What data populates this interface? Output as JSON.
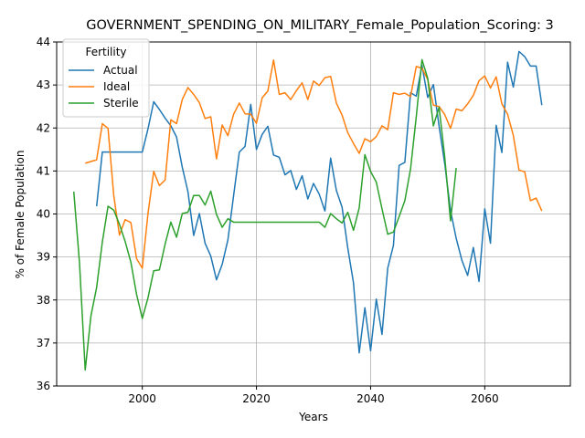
{
  "chart_data": {
    "type": "line",
    "title": "GOVERNMENT_SPENDING_ON_MILITARY_Female_Population_Scoring: 3",
    "xlabel": "Years",
    "ylabel": "% of Female Population",
    "xlim": [
      1985,
      2075
    ],
    "ylim": [
      36,
      44
    ],
    "xticks": [
      2000,
      2020,
      2040,
      2060
    ],
    "yticks": [
      36,
      37,
      38,
      39,
      40,
      41,
      42,
      43,
      44
    ],
    "grid": true,
    "legend": {
      "title": "Fertility",
      "placement": "top-left"
    },
    "series": [
      {
        "name": "Actual",
        "color": "#1f77b4",
        "points": [
          [
            1992,
            40.18
          ],
          [
            1993,
            41.44
          ],
          [
            1994,
            41.44
          ],
          [
            1995,
            41.44
          ],
          [
            1996,
            41.44
          ],
          [
            1997,
            41.44
          ],
          [
            1998,
            41.44
          ],
          [
            1999,
            41.44
          ],
          [
            2000,
            41.44
          ],
          [
            2001,
            41.98
          ],
          [
            2002,
            42.61
          ],
          [
            2003,
            42.43
          ],
          [
            2004,
            42.23
          ],
          [
            2005,
            42.05
          ],
          [
            2006,
            41.79
          ],
          [
            2007,
            41.09
          ],
          [
            2008,
            40.52
          ],
          [
            2009,
            39.5
          ],
          [
            2010,
            40.01
          ],
          [
            2011,
            39.32
          ],
          [
            2012,
            39.02
          ],
          [
            2013,
            38.47
          ],
          [
            2014,
            38.83
          ],
          [
            2015,
            39.4
          ],
          [
            2016,
            40.43
          ],
          [
            2017,
            41.44
          ],
          [
            2018,
            41.57
          ],
          [
            2019,
            42.55
          ],
          [
            2020,
            41.5
          ],
          [
            2021,
            41.85
          ],
          [
            2022,
            42.04
          ],
          [
            2023,
            41.37
          ],
          [
            2024,
            41.32
          ],
          [
            2025,
            40.91
          ],
          [
            2026,
            41.01
          ],
          [
            2027,
            40.57
          ],
          [
            2028,
            40.89
          ],
          [
            2029,
            40.35
          ],
          [
            2030,
            40.71
          ],
          [
            2031,
            40.46
          ],
          [
            2032,
            40.07
          ],
          [
            2033,
            41.3
          ],
          [
            2034,
            40.55
          ],
          [
            2035,
            40.16
          ],
          [
            2036,
            39.21
          ],
          [
            2037,
            38.4
          ],
          [
            2038,
            36.77
          ],
          [
            2039,
            37.82
          ],
          [
            2040,
            36.82
          ],
          [
            2041,
            38.02
          ],
          [
            2042,
            37.2
          ],
          [
            2043,
            38.74
          ],
          [
            2044,
            39.27
          ],
          [
            2045,
            41.13
          ],
          [
            2046,
            41.2
          ],
          [
            2047,
            42.82
          ],
          [
            2048,
            42.74
          ],
          [
            2049,
            43.46
          ],
          [
            2050,
            42.71
          ],
          [
            2051,
            43.01
          ],
          [
            2052,
            42.04
          ],
          [
            2053,
            41.16
          ],
          [
            2054,
            40.08
          ],
          [
            2055,
            39.43
          ],
          [
            2056,
            38.92
          ],
          [
            2057,
            38.57
          ],
          [
            2058,
            39.22
          ],
          [
            2059,
            38.43
          ],
          [
            2060,
            40.12
          ],
          [
            2061,
            39.32
          ],
          [
            2062,
            42.06
          ],
          [
            2063,
            41.43
          ],
          [
            2064,
            43.53
          ],
          [
            2065,
            42.95
          ],
          [
            2066,
            43.78
          ],
          [
            2067,
            43.66
          ],
          [
            2068,
            43.44
          ],
          [
            2069,
            43.44
          ],
          [
            2070,
            42.53
          ]
        ]
      },
      {
        "name": "Ideal",
        "color": "#ff7f0e",
        "points": [
          [
            1990,
            41.18
          ],
          [
            1991,
            41.22
          ],
          [
            1992,
            41.26
          ],
          [
            1993,
            42.1
          ],
          [
            1994,
            41.99
          ],
          [
            1995,
            40.43
          ],
          [
            1996,
            39.51
          ],
          [
            1997,
            39.87
          ],
          [
            1998,
            39.8
          ],
          [
            1999,
            38.96
          ],
          [
            2000,
            38.74
          ],
          [
            2001,
            40.01
          ],
          [
            2002,
            40.99
          ],
          [
            2003,
            40.66
          ],
          [
            2004,
            40.79
          ],
          [
            2005,
            42.19
          ],
          [
            2006,
            42.1
          ],
          [
            2007,
            42.66
          ],
          [
            2008,
            42.94
          ],
          [
            2009,
            42.78
          ],
          [
            2010,
            42.59
          ],
          [
            2011,
            42.22
          ],
          [
            2012,
            42.26
          ],
          [
            2013,
            41.28
          ],
          [
            2014,
            42.07
          ],
          [
            2015,
            41.82
          ],
          [
            2016,
            42.32
          ],
          [
            2017,
            42.58
          ],
          [
            2018,
            42.33
          ],
          [
            2019,
            42.32
          ],
          [
            2020,
            42.11
          ],
          [
            2021,
            42.7
          ],
          [
            2022,
            42.86
          ],
          [
            2023,
            43.58
          ],
          [
            2024,
            42.78
          ],
          [
            2025,
            42.82
          ],
          [
            2026,
            42.66
          ],
          [
            2027,
            42.87
          ],
          [
            2028,
            43.05
          ],
          [
            2029,
            42.66
          ],
          [
            2030,
            43.09
          ],
          [
            2031,
            42.99
          ],
          [
            2032,
            43.17
          ],
          [
            2033,
            43.2
          ],
          [
            2034,
            42.58
          ],
          [
            2035,
            42.3
          ],
          [
            2036,
            41.89
          ],
          [
            2037,
            41.64
          ],
          [
            2038,
            41.41
          ],
          [
            2039,
            41.75
          ],
          [
            2040,
            41.68
          ],
          [
            2041,
            41.8
          ],
          [
            2042,
            42.05
          ],
          [
            2043,
            41.96
          ],
          [
            2044,
            42.82
          ],
          [
            2045,
            42.78
          ],
          [
            2046,
            42.81
          ],
          [
            2047,
            42.73
          ],
          [
            2048,
            43.43
          ],
          [
            2049,
            43.39
          ],
          [
            2050,
            43.13
          ],
          [
            2051,
            42.53
          ],
          [
            2052,
            42.5
          ],
          [
            2053,
            42.31
          ],
          [
            2054,
            41.99
          ],
          [
            2055,
            42.44
          ],
          [
            2056,
            42.4
          ],
          [
            2057,
            42.56
          ],
          [
            2058,
            42.76
          ],
          [
            2059,
            43.1
          ],
          [
            2060,
            43.21
          ],
          [
            2061,
            42.93
          ],
          [
            2062,
            43.19
          ],
          [
            2063,
            42.56
          ],
          [
            2064,
            42.32
          ],
          [
            2065,
            41.83
          ],
          [
            2066,
            41.02
          ],
          [
            2067,
            40.98
          ],
          [
            2068,
            40.31
          ],
          [
            2069,
            40.37
          ],
          [
            2070,
            40.07
          ]
        ]
      },
      {
        "name": "Sterile",
        "color": "#2ca02c",
        "points": [
          [
            1988,
            40.52
          ],
          [
            1989,
            38.86
          ],
          [
            1990,
            36.37
          ],
          [
            1991,
            37.63
          ],
          [
            1992,
            38.29
          ],
          [
            1993,
            39.35
          ],
          [
            1994,
            40.18
          ],
          [
            1995,
            40.09
          ],
          [
            1996,
            39.76
          ],
          [
            1997,
            39.36
          ],
          [
            1998,
            38.88
          ],
          [
            1999,
            38.13
          ],
          [
            2000,
            37.57
          ],
          [
            2001,
            38.05
          ],
          [
            2002,
            38.68
          ],
          [
            2003,
            38.7
          ],
          [
            2004,
            39.3
          ],
          [
            2005,
            39.81
          ],
          [
            2006,
            39.46
          ],
          [
            2007,
            40.01
          ],
          [
            2008,
            40.04
          ],
          [
            2009,
            40.43
          ],
          [
            2010,
            40.43
          ],
          [
            2011,
            40.21
          ],
          [
            2012,
            40.53
          ],
          [
            2013,
            39.99
          ],
          [
            2014,
            39.69
          ],
          [
            2015,
            39.89
          ],
          [
            2016,
            39.81
          ],
          [
            2017,
            39.81
          ],
          [
            2018,
            39.81
          ],
          [
            2019,
            39.81
          ],
          [
            2020,
            39.81
          ],
          [
            2021,
            39.81
          ],
          [
            2022,
            39.81
          ],
          [
            2023,
            39.81
          ],
          [
            2024,
            39.81
          ],
          [
            2025,
            39.81
          ],
          [
            2026,
            39.81
          ],
          [
            2027,
            39.81
          ],
          [
            2028,
            39.81
          ],
          [
            2029,
            39.81
          ],
          [
            2030,
            39.81
          ],
          [
            2031,
            39.81
          ],
          [
            2032,
            39.69
          ],
          [
            2033,
            40.01
          ],
          [
            2034,
            39.89
          ],
          [
            2035,
            39.79
          ],
          [
            2036,
            40.04
          ],
          [
            2037,
            39.62
          ],
          [
            2038,
            40.14
          ],
          [
            2039,
            41.38
          ],
          [
            2040,
            40.99
          ],
          [
            2041,
            40.74
          ],
          [
            2042,
            40.12
          ],
          [
            2043,
            39.53
          ],
          [
            2044,
            39.58
          ],
          [
            2045,
            39.94
          ],
          [
            2046,
            40.31
          ],
          [
            2047,
            41.05
          ],
          [
            2048,
            42.26
          ],
          [
            2049,
            43.59
          ],
          [
            2050,
            43.16
          ],
          [
            2051,
            42.05
          ],
          [
            2052,
            42.48
          ],
          [
            2053,
            41.31
          ],
          [
            2054,
            39.84
          ],
          [
            2055,
            41.07
          ]
        ]
      }
    ]
  }
}
